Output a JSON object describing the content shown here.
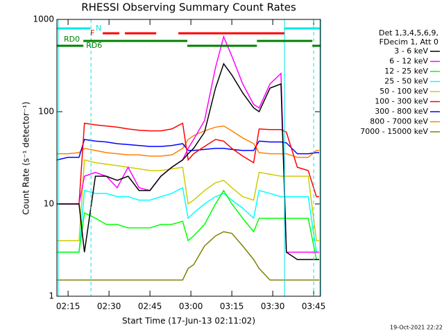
{
  "chart_data": {
    "type": "line",
    "title": "RHESSI Observing Summary Count Rates",
    "x_label": "Start Time (17-Jun-13 02:11:02)",
    "y_label": "Count Rate (s⁻¹ detector⁻¹)",
    "legend_title": [
      "Det 1,3,4,5,6,9,",
      "FDecim 1, Att 0"
    ],
    "footer": "19-Oct-2021 22:22",
    "log_y": true,
    "legend": "outside-right",
    "xlim": [
      130.9,
      227.5
    ],
    "ylim": [
      1,
      1000
    ],
    "xticks": [
      {
        "value": 135,
        "label": "02:15"
      },
      {
        "value": 150,
        "label": "02:30"
      },
      {
        "value": 165,
        "label": "02:45"
      },
      {
        "value": 180,
        "label": "03:00"
      },
      {
        "value": 195,
        "label": "03:15"
      },
      {
        "value": 210,
        "label": "03:30"
      },
      {
        "value": 225,
        "label": "03:45"
      }
    ],
    "yticks": [
      1,
      10,
      100,
      1000
    ],
    "x": [
      131,
      135,
      139,
      141,
      145,
      149,
      153,
      157,
      161,
      165,
      169,
      173,
      177,
      179,
      181,
      185,
      189,
      192,
      195,
      199,
      203,
      205,
      209,
      213,
      215,
      219,
      223,
      226,
      227
    ],
    "series": [
      {
        "name": "3 - 6 keV",
        "color": "#000000",
        "values": [
          10,
          10,
          10,
          3,
          20,
          20,
          18,
          20,
          14,
          14,
          20,
          25,
          30,
          35,
          40,
          60,
          180,
          330,
          250,
          160,
          110,
          100,
          180,
          200,
          3,
          2.5,
          2.5,
          2.5,
          2.5
        ]
      },
      {
        "name": "6 - 12 keV",
        "color": "#ff00ff",
        "values": [
          10,
          10,
          10,
          20,
          22,
          20,
          15,
          25,
          15,
          14,
          20,
          25,
          30,
          40,
          50,
          80,
          300,
          650,
          400,
          200,
          120,
          110,
          200,
          260,
          3,
          3,
          3,
          3,
          3
        ]
      },
      {
        "name": "12 - 25 keV",
        "color": "#00ff00",
        "values": [
          3,
          3,
          3,
          8,
          7,
          6,
          6,
          5.5,
          5.5,
          5.5,
          6,
          6,
          6.5,
          4,
          4.5,
          6,
          10,
          14,
          10,
          7,
          5,
          7,
          7,
          7,
          7,
          7,
          7,
          2.5,
          2.5
        ]
      },
      {
        "name": "25 - 50 keV",
        "color": "#00ffff",
        "values": [
          3,
          3,
          3,
          14,
          13,
          13,
          12,
          12,
          11,
          11,
          12,
          13,
          15,
          7,
          8,
          10,
          12,
          13,
          11,
          9,
          7,
          14,
          13,
          12,
          12,
          12,
          12,
          3,
          3
        ]
      },
      {
        "name": "50 - 100 keV",
        "color": "#cccc00",
        "values": [
          4,
          4,
          4,
          30,
          28,
          27,
          26,
          25,
          24,
          23,
          23,
          24,
          25,
          10,
          11,
          14,
          17,
          18,
          15,
          12,
          11,
          22,
          21,
          20,
          20,
          20,
          20,
          4,
          4
        ]
      },
      {
        "name": "100 - 300 keV",
        "color": "#ff0000",
        "values": [
          10,
          10,
          10,
          75,
          72,
          70,
          68,
          65,
          63,
          62,
          62,
          65,
          75,
          30,
          35,
          42,
          50,
          48,
          40,
          33,
          28,
          65,
          64,
          64,
          60,
          25,
          23,
          12,
          12
        ]
      },
      {
        "name": "300 - 800 keV",
        "color": "#0000ff",
        "values": [
          30,
          32,
          32,
          50,
          48,
          47,
          45,
          44,
          43,
          42,
          42,
          43,
          45,
          38,
          38,
          39,
          40,
          40,
          39,
          38,
          38,
          48,
          47,
          47,
          46,
          35,
          35,
          36,
          36
        ]
      },
      {
        "name": "800 - 7000 keV",
        "color": "#ff8000",
        "values": [
          35,
          35,
          36,
          40,
          38,
          36,
          35,
          34,
          34,
          33,
          33,
          34,
          40,
          50,
          55,
          62,
          68,
          70,
          62,
          52,
          45,
          36,
          35,
          35,
          35,
          32,
          32,
          38,
          38
        ]
      },
      {
        "name": "7000 - 15000 keV",
        "color": "#808000",
        "values": [
          1.5,
          1.5,
          1.5,
          1.5,
          1.5,
          1.5,
          1.5,
          1.5,
          1.5,
          1.5,
          1.5,
          1.5,
          1.5,
          2,
          2.2,
          3.5,
          4.5,
          5,
          4.8,
          3.5,
          2.5,
          2,
          1.5,
          1.5,
          1.5,
          1.5,
          1.5,
          1.5,
          1.5
        ]
      }
    ],
    "state_bars": [
      {
        "label": "N",
        "color": "#00e5e5",
        "intervals": [
          [
            130.9,
            143.1
          ],
          [
            214.3,
            227.5
          ]
        ]
      },
      {
        "label": "F",
        "color": "#ff0000",
        "intervals": [
          [
            147.7,
            153.8
          ],
          [
            155.8,
            167.3
          ],
          [
            175.4,
            214.3
          ]
        ]
      },
      {
        "label": "RD0",
        "color": "#008000",
        "intervals": [
          [
            130.9,
            140.6
          ],
          [
            178.7,
            204.2
          ],
          [
            224.5,
            227.5
          ]
        ]
      },
      {
        "label": "RD6",
        "color": "#008000",
        "intervals": [
          [
            140.6,
            178.7
          ],
          [
            204.2,
            224.5
          ]
        ]
      }
    ],
    "vlines": [
      {
        "x": 131.4,
        "color": "#00e5e5",
        "dashed": false
      },
      {
        "x": 143.4,
        "color": "#00e5e5",
        "dashed": true
      },
      {
        "x": 214.3,
        "color": "#00e5e5",
        "dashed": false
      },
      {
        "x": 225.0,
        "color": "#00e5e5",
        "dashed": true
      },
      {
        "x": 227.3,
        "color": "#00e5e5",
        "dashed": false
      }
    ]
  }
}
